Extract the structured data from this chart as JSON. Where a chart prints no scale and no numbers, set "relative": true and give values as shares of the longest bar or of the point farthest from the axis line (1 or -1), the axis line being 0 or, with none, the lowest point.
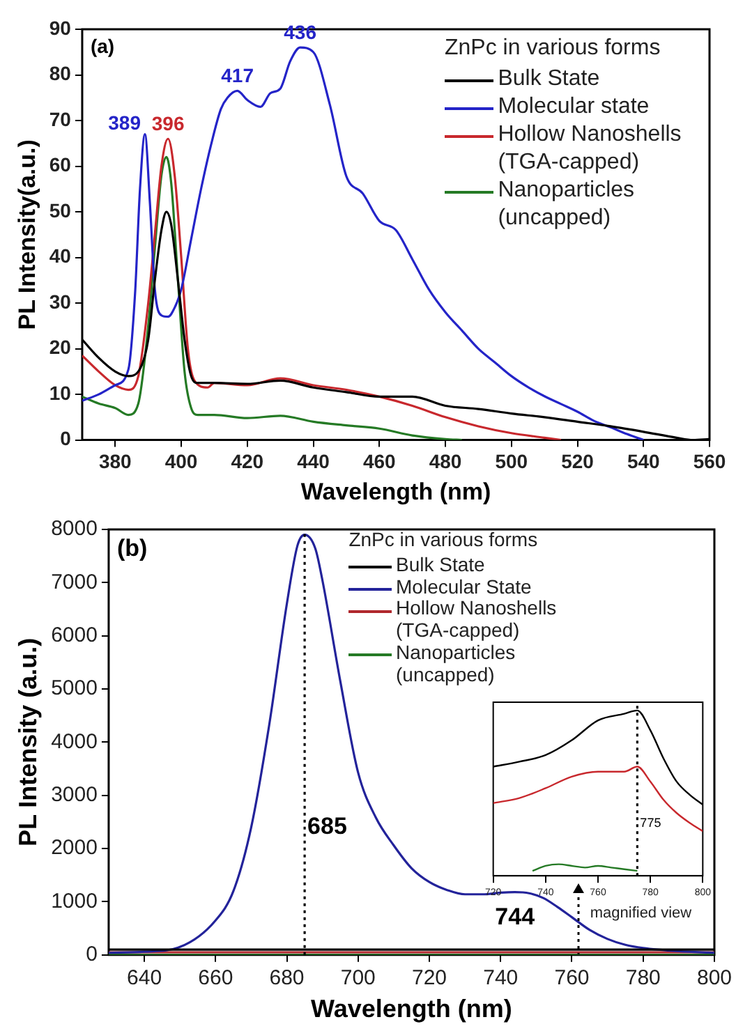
{
  "chart_data": [
    {
      "type": "line",
      "xlabel": "Wavelength (nm)",
      "ylabel": "PL Intensity(a.u.)",
      "legend_title": "ZnPc in various forms",
      "legend": "top right",
      "xlim": [
        370,
        560
      ],
      "xticks": [
        380,
        400,
        420,
        440,
        460,
        480,
        500,
        520,
        540,
        560
      ],
      "ylim": [
        0,
        90
      ],
      "yticks": [
        0,
        10,
        20,
        30,
        40,
        50,
        60,
        70,
        80,
        90
      ],
      "annotations": [
        "(a)",
        {
          "text": "389",
          "x": 389,
          "y": 67
        },
        {
          "text": "396",
          "x": 396,
          "y": 66
        },
        {
          "text": "417",
          "x": 417,
          "y": 76.5
        },
        {
          "text": "436",
          "x": 436,
          "y": 86
        }
      ],
      "series": [
        {
          "name": "Bulk State",
          "color": "#000000",
          "x": [
            370,
            375,
            380,
            384,
            387,
            390,
            392,
            394,
            395.5,
            397,
            399,
            401,
            403,
            405,
            410,
            420,
            430,
            440,
            450,
            460,
            470,
            480,
            490,
            500,
            510,
            520,
            530,
            540,
            550,
            555,
            560
          ],
          "values": [
            22,
            18,
            15,
            14,
            15,
            22,
            35,
            46,
            50,
            47,
            35,
            22,
            14,
            12.5,
            12.5,
            12.3,
            13,
            11.5,
            10.5,
            9.5,
            9.5,
            7.5,
            6.8,
            5.8,
            5,
            4,
            3,
            1.8,
            0.5,
            0,
            0.2
          ]
        },
        {
          "name": "Molecular state",
          "color": "#2424c8",
          "x": [
            370,
            375,
            380,
            384,
            386,
            387.5,
            389,
            390.5,
            392,
            394,
            396,
            398,
            400,
            403,
            406,
            409,
            412,
            414,
            417,
            420,
            424,
            427,
            430,
            433,
            436,
            440,
            445,
            450,
            455,
            460,
            465,
            470,
            475,
            480,
            485,
            490,
            495,
            500,
            505,
            510,
            515,
            520,
            525,
            530,
            535,
            540
          ],
          "values": [
            8.6,
            10,
            12,
            15.5,
            32,
            55,
            67,
            52,
            33,
            27.3,
            27,
            29,
            33,
            44,
            55,
            64.6,
            72.5,
            75,
            76.5,
            74.5,
            73,
            76,
            77,
            83,
            86,
            85,
            73.5,
            57.8,
            54,
            48,
            46,
            39.6,
            33,
            28,
            24,
            20,
            17,
            14,
            11.6,
            9.6,
            7.9,
            6.2,
            4.2,
            2.8,
            1.3,
            0
          ]
        },
        {
          "name": "Hollow Nanoshells (TGA-capped)",
          "color": "#c8282d",
          "x": [
            370,
            375,
            380,
            384,
            387,
            390,
            392,
            394,
            396,
            398,
            400,
            402,
            404,
            408,
            410,
            420,
            430,
            440,
            450,
            460,
            470,
            480,
            490,
            500,
            510,
            515
          ],
          "values": [
            18.5,
            15,
            12,
            11,
            14,
            30,
            45,
            60,
            66,
            58,
            40,
            20,
            13,
            11.5,
            12.5,
            12,
            13.5,
            12,
            11,
            9.5,
            7.5,
            5,
            3,
            1.5,
            0.5,
            0
          ]
        },
        {
          "name": "Nanoparticles (uncapped)",
          "color": "#257a25",
          "x": [
            370,
            375,
            380,
            384,
            387,
            390,
            392,
            394,
            395.5,
            397,
            399,
            401,
            403,
            405,
            410,
            420,
            430,
            440,
            450,
            460,
            470,
            480,
            485
          ],
          "values": [
            9.5,
            8,
            7,
            5.5,
            8,
            25,
            42,
            58,
            62,
            56,
            35,
            15,
            7,
            5.5,
            5.5,
            4.8,
            5.3,
            4,
            3.2,
            2.5,
            1,
            0.2,
            0
          ]
        }
      ]
    },
    {
      "type": "line",
      "xlabel": "Wavelength (nm)",
      "ylabel": "PL Intensity (a.u.)",
      "legend_title": "ZnPc in various forms",
      "legend": "top",
      "xlim": [
        630,
        800
      ],
      "xticks": [
        640,
        660,
        680,
        700,
        720,
        740,
        760,
        780,
        800
      ],
      "ylim": [
        0,
        8000
      ],
      "yticks": [
        0,
        1000,
        2000,
        3000,
        4000,
        5000,
        6000,
        7000,
        8000
      ],
      "annotations": [
        "(b)",
        {
          "text": "744",
          "x": 744,
          "y": 1180
        },
        "magnified view"
      ],
      "ref_lines": [
        {
          "axis": "x",
          "value": 685,
          "label": "685"
        }
      ],
      "series": [
        {
          "name": "Bulk State",
          "color": "#000000",
          "x": [
            630,
            650,
            700,
            750,
            800
          ],
          "values": [
            100,
            100,
            100,
            100,
            100
          ]
        },
        {
          "name": "Molecular State",
          "color": "#23239a",
          "x": [
            630,
            640,
            650,
            660,
            665,
            670,
            675,
            680,
            683,
            685,
            688,
            690,
            695,
            700,
            705,
            710,
            715,
            720,
            725,
            730,
            735,
            740,
            744,
            748,
            752,
            756,
            760,
            765,
            770,
            775,
            780,
            790,
            800
          ],
          "values": [
            40,
            60,
            150,
            650,
            1200,
            2400,
            4300,
            6600,
            7700,
            7900,
            7640,
            7040,
            5150,
            3430,
            2580,
            2060,
            1630,
            1370,
            1220,
            1140,
            1140,
            1170,
            1180,
            1160,
            1070,
            900,
            710,
            470,
            300,
            190,
            130,
            70,
            40
          ]
        },
        {
          "name": "Hollow Nanoshells (TGA-capped)",
          "color": "#b0282d",
          "x": [
            630,
            700,
            800
          ],
          "values": [
            50,
            50,
            50
          ]
        },
        {
          "name": "Nanoparticles (uncapped)",
          "color": "#257a25",
          "x": [
            630,
            700,
            800
          ],
          "values": [
            0,
            0,
            0
          ]
        }
      ]
    },
    {
      "type": "line",
      "relative": true,
      "tick_labels": "x",
      "xlim": [
        720,
        800
      ],
      "xticks": [
        720,
        740,
        760,
        780,
        800
      ],
      "ref_lines": [
        {
          "axis": "x",
          "value": 775,
          "label": "775"
        }
      ],
      "series": [
        {
          "color": "#000000",
          "x": [
            720,
            730,
            740,
            750,
            760,
            770,
            775,
            780,
            785,
            790,
            795,
            800
          ],
          "values": [
            0.66,
            0.69,
            0.73,
            0.82,
            0.94,
            0.98,
            1,
            0.88,
            0.71,
            0.57,
            0.49,
            0.43
          ]
        },
        {
          "color": "#c8282d",
          "x": [
            720,
            730,
            740,
            750,
            760,
            770,
            775,
            780,
            785,
            790,
            795,
            800
          ],
          "values": [
            0.44,
            0.47,
            0.53,
            0.6,
            0.63,
            0.63,
            0.66,
            0.57,
            0.46,
            0.38,
            0.32,
            0.27
          ]
        },
        {
          "color": "#257a25",
          "x": [
            735,
            740,
            745,
            750,
            755,
            760,
            765,
            770,
            775
          ],
          "values": [
            0.03,
            0.06,
            0.07,
            0.06,
            0.05,
            0.06,
            0.05,
            0.04,
            0.03
          ]
        }
      ]
    }
  ]
}
